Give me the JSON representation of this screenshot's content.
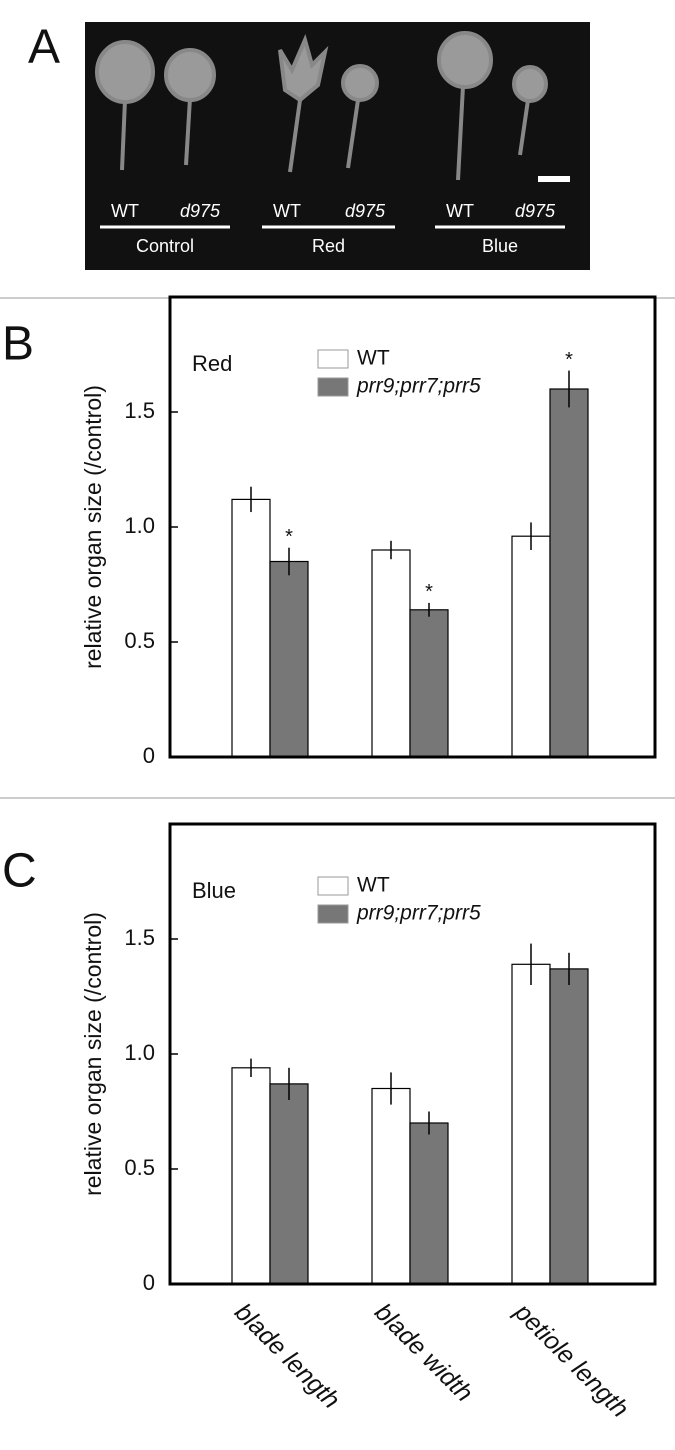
{
  "panel_a": {
    "panel_label": "A",
    "groups": [
      {
        "labels": [
          "WT",
          "d975"
        ],
        "condition": "Control"
      },
      {
        "labels": [
          "WT",
          "d975"
        ],
        "condition": "Red"
      },
      {
        "labels": [
          "WT",
          "d975"
        ],
        "condition": "Blue"
      }
    ]
  },
  "chart_data": [
    {
      "type": "bar",
      "panel_label": "B",
      "inset_label": "Red",
      "y_label": "relative organ size (/control)",
      "ylim": [
        0,
        2
      ],
      "yticks": [
        0,
        0.5,
        {
          "value": 1,
          "label": "1.0"
        },
        1.5
      ],
      "series": [
        {
          "name": "WT",
          "color": "#ffffff",
          "values": [
            1.12,
            0.9,
            0.96
          ],
          "errors": [
            0.055,
            0.04,
            0.06
          ]
        },
        {
          "name": "prr9;prr7;prr5",
          "color": "#777777",
          "values": [
            0.85,
            0.64,
            1.6
          ],
          "errors": [
            0.06,
            0.03,
            0.08
          ],
          "significance": [
            "*",
            "*",
            "*"
          ]
        }
      ]
    },
    {
      "type": "bar",
      "panel_label": "C",
      "inset_label": "Blue",
      "y_label": "relative organ size (/control)",
      "categories": [
        "blade length",
        "blade width",
        "petiole length"
      ],
      "ylim": [
        0,
        2
      ],
      "yticks": [
        0,
        0.5,
        {
          "value": 1,
          "label": "1.0"
        },
        1.5
      ],
      "series": [
        {
          "name": "WT",
          "color": "#ffffff",
          "values": [
            0.94,
            0.85,
            1.39
          ],
          "errors": [
            0.04,
            0.07,
            0.09
          ]
        },
        {
          "name": "prr9;prr7;prr5",
          "color": "#777777",
          "values": [
            0.87,
            0.7,
            1.37
          ],
          "errors": [
            0.07,
            0.05,
            0.07
          ]
        }
      ]
    }
  ]
}
